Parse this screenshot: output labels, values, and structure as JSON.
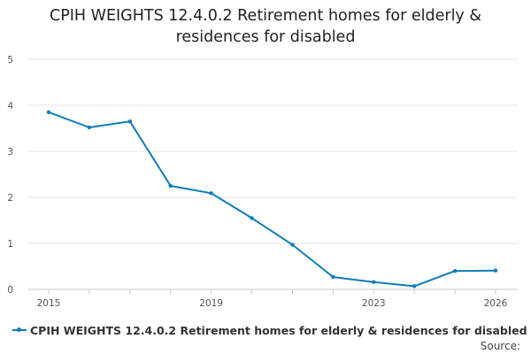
{
  "colors": {
    "series": "#0f7cb8",
    "grid": "#e6e6e6",
    "axis": "#c7c7c7"
  },
  "chart_data": {
    "type": "line",
    "title": "CPIH WEIGHTS 12.4.0.2 Retirement homes for elderly & residences for disabled",
    "title_lines": [
      "CPIH WEIGHTS 12.4.0.2 Retirement homes for elderly &",
      "residences for disabled"
    ],
    "xlabel": "",
    "ylabel": "",
    "x": [
      2015,
      2016,
      2017,
      2018,
      2019,
      2020,
      2021,
      2022,
      2023,
      2024,
      2025,
      2026
    ],
    "x_ticks": [
      "2015",
      "2019",
      "2023",
      "2026"
    ],
    "y_ticks": [
      "0",
      "1",
      "2",
      "3",
      "4",
      "5"
    ],
    "ylim": [
      0,
      5
    ],
    "xlim": [
      2015,
      2026
    ],
    "grid": true,
    "series": [
      {
        "name": "CPIH WEIGHTS 12.4.0.2 Retirement homes for elderly & residences for disabled",
        "values": [
          3.85,
          3.52,
          3.65,
          2.25,
          2.09,
          1.55,
          0.97,
          0.27,
          0.16,
          0.07,
          0.4,
          0.41
        ]
      }
    ],
    "legend_position": "bottom-left",
    "source_label": "Source:"
  }
}
